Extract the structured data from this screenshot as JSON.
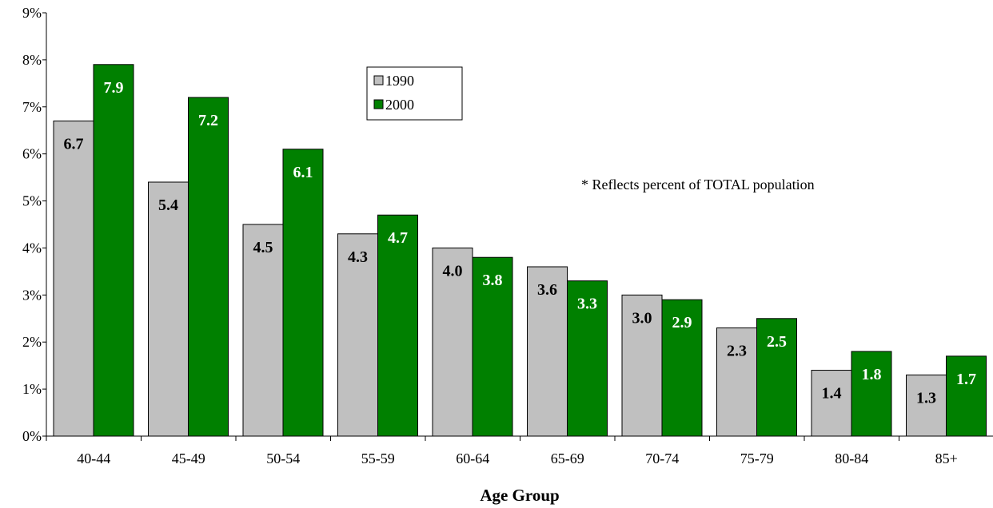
{
  "chart_data": {
    "type": "bar",
    "title": "",
    "xlabel": "Age Group",
    "ylabel": "",
    "categories": [
      "40-44",
      "45-49",
      "50-54",
      "55-59",
      "60-64",
      "65-69",
      "70-74",
      "75-79",
      "80-84",
      "85+"
    ],
    "series": [
      {
        "name": "1990",
        "values": [
          6.7,
          5.4,
          4.5,
          4.3,
          4.0,
          3.6,
          3.0,
          2.3,
          1.4,
          1.3
        ],
        "color": "#c0c0c0",
        "label_color": "#000000"
      },
      {
        "name": "2000",
        "values": [
          7.9,
          7.2,
          6.1,
          4.7,
          3.8,
          3.3,
          2.9,
          2.5,
          1.8,
          1.7
        ],
        "color": "#008000",
        "label_color": "#ffffff"
      }
    ],
    "ylim": [
      0,
      9
    ],
    "yticks": [
      0,
      1,
      2,
      3,
      4,
      5,
      6,
      7,
      8,
      9
    ],
    "ytick_suffix": "%",
    "grid": false,
    "legend_position": "top-center",
    "annotation": "* Reflects percent of TOTAL population"
  }
}
